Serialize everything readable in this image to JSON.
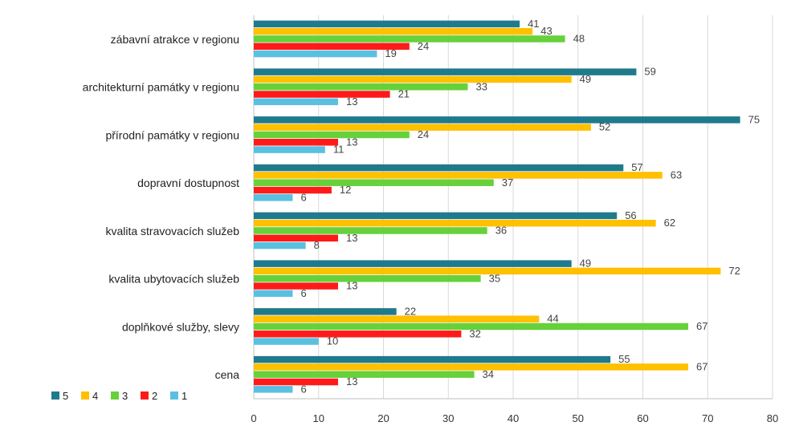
{
  "chart_data": {
    "type": "bar",
    "orientation": "horizontal",
    "categories": [
      "zábavní atrakce v regionu",
      "architekturní památky v regionu",
      "přírodní památky v regionu",
      "dopravní dostupnost",
      "kvalita stravovacích služeb",
      "kvalita ubytovacích služeb",
      "doplňkové služby, slevy",
      "cena"
    ],
    "series": [
      {
        "name": "5",
        "color": "#1f7a8c",
        "values": [
          41,
          59,
          75,
          57,
          56,
          49,
          22,
          55
        ]
      },
      {
        "name": "4",
        "color": "#ffc000",
        "values": [
          43,
          49,
          52,
          63,
          62,
          72,
          44,
          67
        ]
      },
      {
        "name": "3",
        "color": "#66d13a",
        "values": [
          48,
          33,
          24,
          37,
          36,
          35,
          67,
          34
        ]
      },
      {
        "name": "2",
        "color": "#ff1a1a",
        "values": [
          24,
          21,
          13,
          12,
          13,
          13,
          32,
          13
        ]
      },
      {
        "name": "1",
        "color": "#5bc0e0",
        "values": [
          19,
          13,
          11,
          6,
          8,
          6,
          10,
          6
        ]
      }
    ],
    "xlim": [
      0,
      80
    ],
    "xticks": [
      "0",
      "10",
      "20",
      "30",
      "40",
      "50",
      "60",
      "70",
      "80"
    ],
    "grid": true,
    "legend_position": "bottom-left",
    "title": "",
    "xlabel": "",
    "ylabel": ""
  }
}
